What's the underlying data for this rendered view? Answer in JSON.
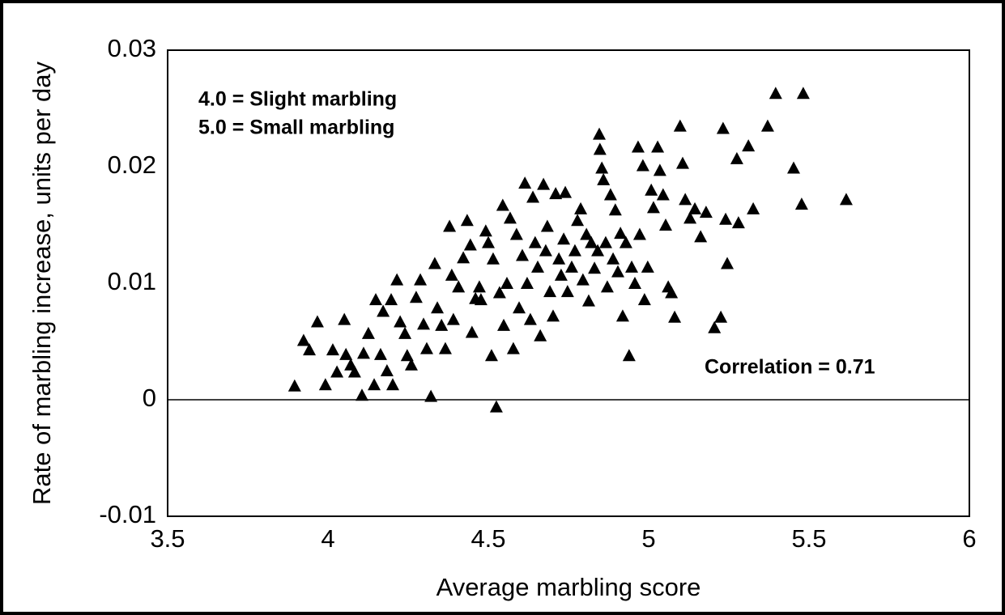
{
  "chart_data": {
    "type": "scatter",
    "xlabel": "Average marbling score",
    "ylabel": "Rate of marbling increase, units per day",
    "annotations": [
      "4.0 = Slight marbling",
      "5.0 = Small marbling",
      "Correlation = 0.71"
    ],
    "color": "#000000",
    "xlim": [
      3.5,
      6
    ],
    "xticks": [
      3.5,
      4,
      4.5,
      5,
      5.5,
      6
    ],
    "ylim": [
      -0.01,
      0.03
    ],
    "yticks": [
      0.03,
      0.02,
      0.01,
      0,
      -0.01
    ],
    "x": [
      3.896,
      3.924,
      3.942,
      3.967,
      3.992,
      4.015,
      4.028,
      4.051,
      4.056,
      4.071,
      4.083,
      4.106,
      4.111,
      4.126,
      4.144,
      4.149,
      4.164,
      4.172,
      4.184,
      4.197,
      4.202,
      4.215,
      4.225,
      4.24,
      4.247,
      4.26,
      4.275,
      4.288,
      4.298,
      4.308,
      4.321,
      4.333,
      4.341,
      4.354,
      4.366,
      4.379,
      4.386,
      4.391,
      4.407,
      4.422,
      4.434,
      4.444,
      4.449,
      4.46,
      4.472,
      4.477,
      4.492,
      4.5,
      4.51,
      4.515,
      4.525,
      4.535,
      4.545,
      4.548,
      4.558,
      4.568,
      4.578,
      4.588,
      4.596,
      4.606,
      4.614,
      4.621,
      4.631,
      4.639,
      4.646,
      4.654,
      4.662,
      4.672,
      4.679,
      4.684,
      4.692,
      4.702,
      4.71,
      4.72,
      4.727,
      4.735,
      4.74,
      4.747,
      4.76,
      4.77,
      4.778,
      4.788,
      4.795,
      4.806,
      4.813,
      4.821,
      4.831,
      4.841,
      4.846,
      4.848,
      4.854,
      4.859,
      4.866,
      4.871,
      4.881,
      4.889,
      4.896,
      4.904,
      4.912,
      4.919,
      4.929,
      4.939,
      4.947,
      4.957,
      4.967,
      4.972,
      4.982,
      4.987,
      4.997,
      5.008,
      5.015,
      5.028,
      5.035,
      5.045,
      5.053,
      5.061,
      5.071,
      5.081,
      5.098,
      5.106,
      5.114,
      5.129,
      5.144,
      5.162,
      5.179,
      5.205,
      5.225,
      5.232,
      5.24,
      5.245,
      5.275,
      5.28,
      5.311,
      5.326,
      5.371,
      5.396,
      5.452,
      5.477,
      5.482,
      5.616
    ],
    "y": [
      0.0012,
      0.0051,
      0.0043,
      0.0067,
      0.0013,
      0.0043,
      0.0024,
      0.0069,
      0.0039,
      0.003,
      0.0024,
      0.0004,
      0.004,
      0.0057,
      0.0013,
      0.0086,
      0.0039,
      0.0076,
      0.0025,
      0.0086,
      0.0013,
      0.0103,
      0.0067,
      0.0057,
      0.0038,
      0.003,
      0.0088,
      0.0103,
      0.0065,
      0.0044,
      0.0003,
      0.0117,
      0.0079,
      0.0064,
      0.0044,
      0.0149,
      0.0107,
      0.0069,
      0.0097,
      0.0122,
      0.0154,
      0.0133,
      0.0058,
      0.0087,
      0.0097,
      0.0086,
      0.0145,
      0.0135,
      0.0038,
      0.0121,
      -0.0006,
      0.0092,
      0.0167,
      0.0064,
      0.01,
      0.0156,
      0.0044,
      0.0142,
      0.0079,
      0.0124,
      0.0186,
      0.01,
      0.0069,
      0.0174,
      0.0135,
      0.0114,
      0.0055,
      0.0185,
      0.0128,
      0.0149,
      0.0093,
      0.0072,
      0.0177,
      0.0121,
      0.0107,
      0.0138,
      0.0178,
      0.0093,
      0.0114,
      0.0128,
      0.0154,
      0.0164,
      0.0103,
      0.0142,
      0.0085,
      0.0135,
      0.0113,
      0.0128,
      0.0228,
      0.0215,
      0.0199,
      0.0189,
      0.0135,
      0.0097,
      0.0176,
      0.0121,
      0.0163,
      0.011,
      0.0143,
      0.0072,
      0.0135,
      0.0038,
      0.0114,
      0.01,
      0.0217,
      0.0142,
      0.0201,
      0.0086,
      0.0114,
      0.018,
      0.0165,
      0.0217,
      0.0197,
      0.0176,
      0.015,
      0.0097,
      0.0092,
      0.0071,
      0.0235,
      0.0203,
      0.0172,
      0.0156,
      0.0164,
      0.014,
      0.0161,
      0.0062,
      0.0071,
      0.0233,
      0.0155,
      0.0117,
      0.0207,
      0.0152,
      0.0218,
      0.0164,
      0.0235,
      0.0263,
      0.0199,
      0.0168,
      0.0263,
      0.0172
    ]
  }
}
